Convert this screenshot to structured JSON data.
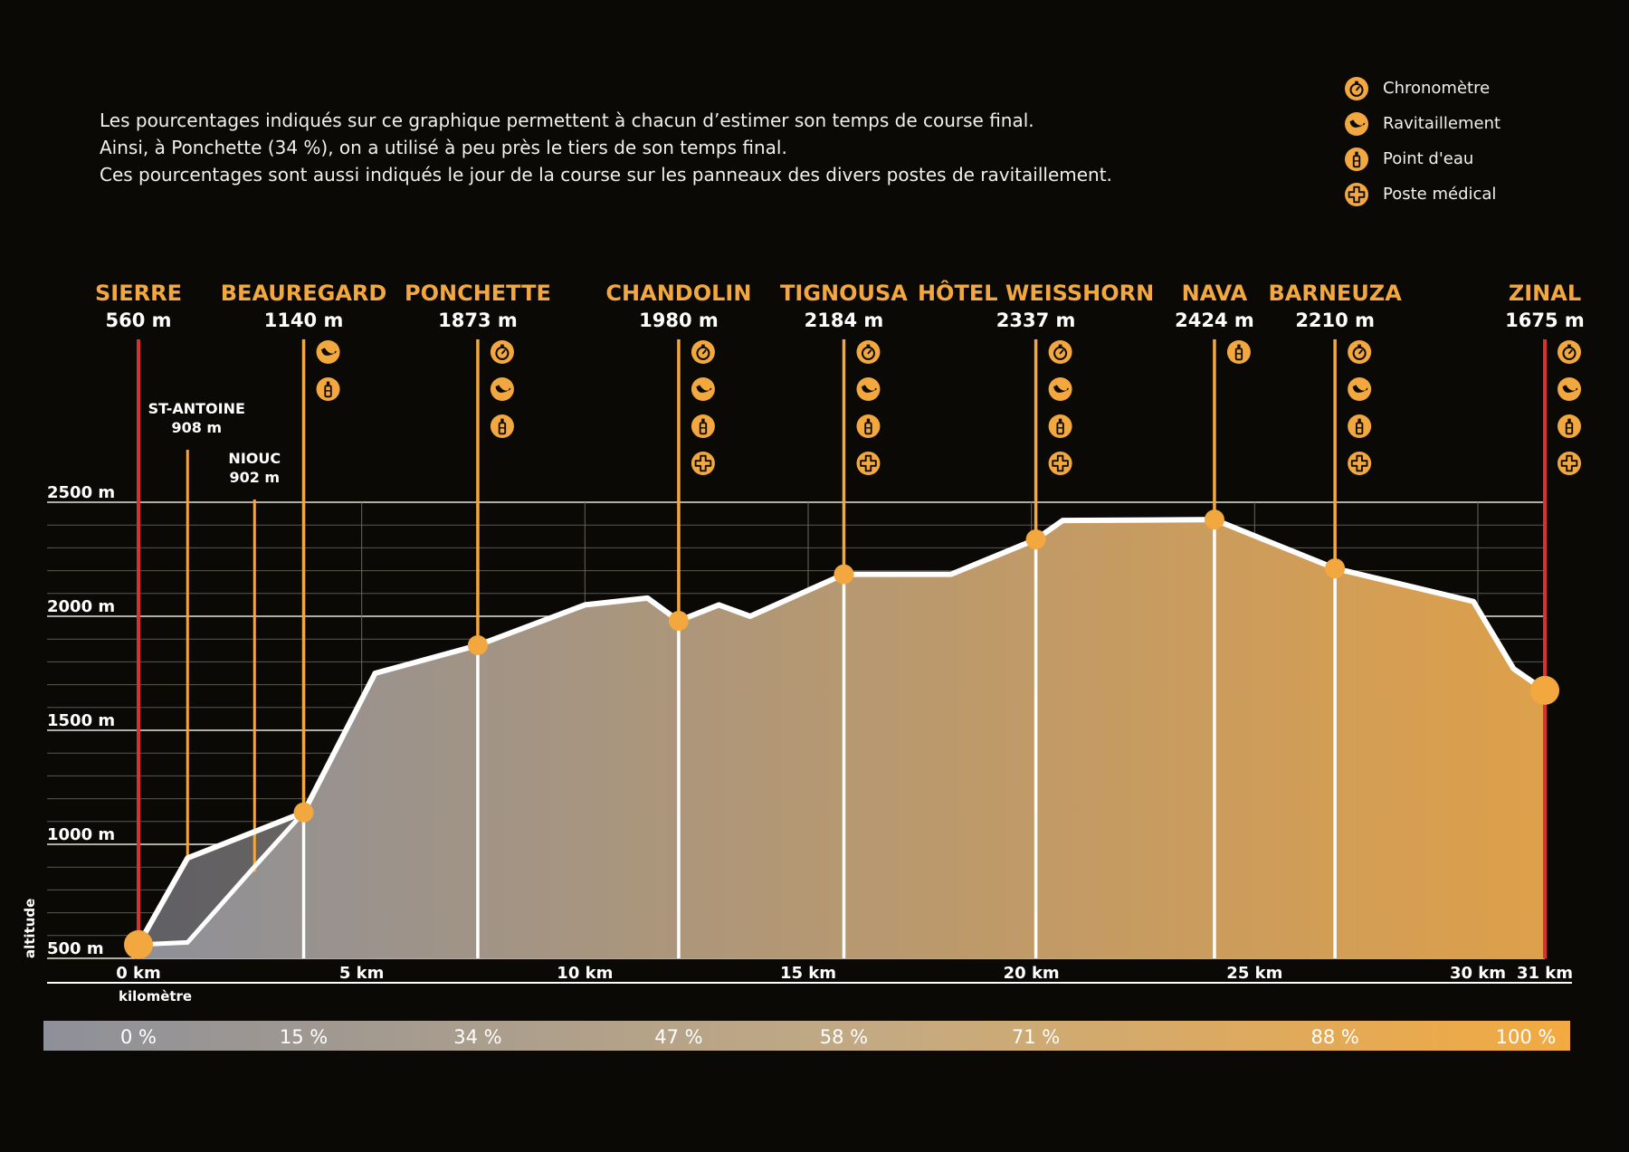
{
  "intro": {
    "line1": "Les pourcentages indiqués sur ce graphique permettent à chacun d’estimer son temps de course final.",
    "line2": "Ainsi, à Ponchette (34 %), on a utilisé à peu près le tiers de son temps final.",
    "line3": "Ces pourcentages sont aussi indiqués le jour de la course sur les panneaux des divers postes de ravitaillement."
  },
  "legend": [
    {
      "icon": "stopwatch-icon",
      "label": "Chronomètre"
    },
    {
      "icon": "banana-icon",
      "label": "Ravitaillement"
    },
    {
      "icon": "water-bottle-icon",
      "label": "Point d'eau"
    },
    {
      "icon": "medical-cross-icon",
      "label": "Poste médical"
    }
  ],
  "colors": {
    "background": "#0b0906",
    "accent": "#f2a83f",
    "red": "#d8312f",
    "profile_start": "#8e9099",
    "profile_end": "#dea04a"
  },
  "chart_data": {
    "type": "area",
    "ylabel": "altitude",
    "xlabel": "kilomètre",
    "xlim": [
      0,
      31.5
    ],
    "ylim": [
      500,
      2500
    ],
    "y_ticks": [
      {
        "value": 500,
        "label": "500 m"
      },
      {
        "value": 1000,
        "label": "1000 m"
      },
      {
        "value": 1500,
        "label": "1500 m"
      },
      {
        "value": 2000,
        "label": "2000 m"
      },
      {
        "value": 2500,
        "label": "2500 m"
      }
    ],
    "x_ticks": [
      {
        "value": 0,
        "label": "0 km"
      },
      {
        "value": 5,
        "label": "5 km"
      },
      {
        "value": 10,
        "label": "10 km"
      },
      {
        "value": 15,
        "label": "15 km"
      },
      {
        "value": 20,
        "label": "20 km"
      },
      {
        "value": 25,
        "label": "25 km"
      },
      {
        "value": 30,
        "label": "30 km"
      },
      {
        "value": 31.5,
        "label": "31 km"
      }
    ],
    "profile_upper": [
      [
        0,
        560
      ],
      [
        1.1,
        940
      ],
      [
        3.7,
        1140
      ],
      [
        5.3,
        1750
      ],
      [
        7.6,
        1873
      ],
      [
        10,
        2050
      ],
      [
        11.4,
        2080
      ],
      [
        12.1,
        1980
      ],
      [
        13,
        2050
      ],
      [
        13.7,
        2000
      ],
      [
        15.8,
        2184
      ],
      [
        18.2,
        2184
      ],
      [
        20.1,
        2337
      ],
      [
        20.7,
        2420
      ],
      [
        24.1,
        2424
      ],
      [
        26.8,
        2210
      ],
      [
        29.9,
        2065
      ],
      [
        30.8,
        1770
      ],
      [
        31.5,
        1675
      ]
    ],
    "profile_lower": [
      [
        0,
        560
      ],
      [
        1.1,
        570
      ],
      [
        2.6,
        902
      ],
      [
        3.7,
        1140
      ]
    ],
    "locations": [
      {
        "name": "SIERRE",
        "alt_label": "560 m",
        "km": 0,
        "alt": 560,
        "terminus": true,
        "icons": []
      },
      {
        "name": "BEAUREGARD",
        "alt_label": "1140 m",
        "km": 3.7,
        "alt": 1140,
        "icons": [
          "banana-icon",
          "water-bottle-icon"
        ]
      },
      {
        "name": "PONCHETTE",
        "alt_label": "1873 m",
        "km": 7.6,
        "alt": 1873,
        "icons": [
          "stopwatch-icon",
          "banana-icon",
          "water-bottle-icon"
        ]
      },
      {
        "name": "CHANDOLIN",
        "alt_label": "1980 m",
        "km": 12.1,
        "alt": 1980,
        "icons": [
          "stopwatch-icon",
          "banana-icon",
          "water-bottle-icon",
          "medical-cross-icon"
        ]
      },
      {
        "name": "TIGNOUSA",
        "alt_label": "2184 m",
        "km": 15.8,
        "alt": 2184,
        "icons": [
          "stopwatch-icon",
          "banana-icon",
          "water-bottle-icon",
          "medical-cross-icon"
        ]
      },
      {
        "name": "HÔTEL WEISSHORN",
        "alt_label": "2337 m",
        "km": 20.1,
        "alt": 2337,
        "icons": [
          "stopwatch-icon",
          "banana-icon",
          "water-bottle-icon",
          "medical-cross-icon"
        ]
      },
      {
        "name": "NAVA",
        "alt_label": "2424 m",
        "km": 24.1,
        "alt": 2424,
        "icons": [
          "water-bottle-icon"
        ]
      },
      {
        "name": "BARNEUZA",
        "alt_label": "2210 m",
        "km": 26.8,
        "alt": 2210,
        "icons": [
          "stopwatch-icon",
          "banana-icon",
          "water-bottle-icon",
          "medical-cross-icon"
        ]
      },
      {
        "name": "ZINAL",
        "alt_label": "1675 m",
        "km": 31.5,
        "alt": 1675,
        "terminus": true,
        "icons": [
          "stopwatch-icon",
          "banana-icon",
          "water-bottle-icon",
          "medical-cross-icon"
        ]
      }
    ],
    "minor_points": [
      {
        "name": "ST-ANTOINE",
        "alt_label": "908 m",
        "km": 1.1
      },
      {
        "name": "NIOUC",
        "alt_label": "902 m",
        "km": 2.6
      }
    ],
    "percentages": [
      {
        "label": "0 %",
        "km": 0
      },
      {
        "label": "15 %",
        "km": 3.7
      },
      {
        "label": "34 %",
        "km": 7.6
      },
      {
        "label": "47 %",
        "km": 12.1
      },
      {
        "label": "58 %",
        "km": 15.8
      },
      {
        "label": "71 %",
        "km": 20.1
      },
      {
        "label": "88 %",
        "km": 26.8
      },
      {
        "label": "100 %",
        "km": 31.5
      }
    ]
  }
}
